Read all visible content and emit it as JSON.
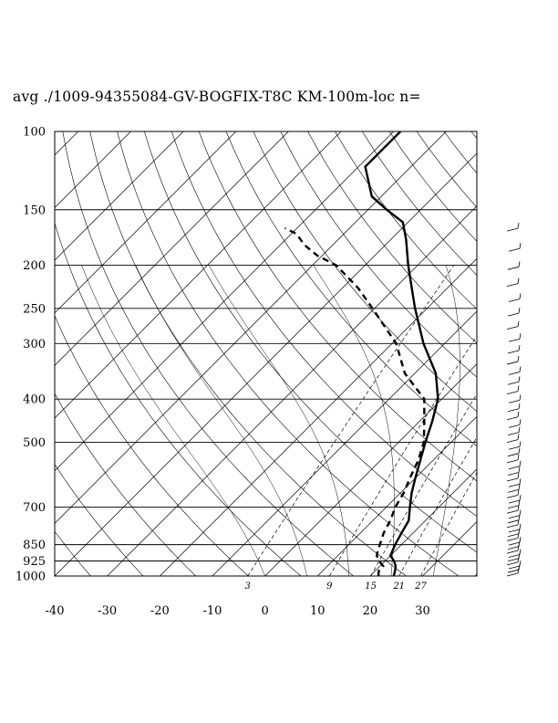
{
  "title": "avg ./1009-94355084-GV-BOGFIX-T8C KM-100m-loc n=",
  "chart_data": {
    "type": "line",
    "subtype": "skew-T log-P diagram",
    "pressure_levels": [
      100,
      150,
      200,
      250,
      300,
      400,
      500,
      700,
      850,
      925,
      1000
    ],
    "temperature_ticks": [
      -40,
      -30,
      -20,
      -10,
      0,
      10,
      20,
      30
    ],
    "mixing_ratio_labels": [
      "3",
      "9",
      "15",
      "21",
      "27"
    ],
    "yscale": "log",
    "ylim": [
      1000,
      100
    ],
    "xlim": [
      -40,
      40
    ],
    "series": [
      {
        "style": "solid",
        "points": [
          [
            1000,
            24.5
          ],
          [
            975,
            23.8
          ],
          [
            950,
            23.0
          ],
          [
            925,
            21.7
          ],
          [
            900,
            20.0
          ],
          [
            875,
            19.4
          ],
          [
            850,
            18.8
          ],
          [
            800,
            17.8
          ],
          [
            750,
            16.8
          ],
          [
            700,
            14.5
          ],
          [
            650,
            12.1
          ],
          [
            600,
            9.9
          ],
          [
            550,
            7.6
          ],
          [
            500,
            5.1
          ],
          [
            450,
            2.5
          ],
          [
            400,
            -0.7
          ],
          [
            350,
            -6.0
          ],
          [
            300,
            -14.0
          ],
          [
            250,
            -22.3
          ],
          [
            225,
            -26.8
          ],
          [
            200,
            -31.8
          ],
          [
            175,
            -37.1
          ],
          [
            160,
            -41.0
          ],
          [
            150,
            -46.4
          ],
          [
            140,
            -51.8
          ],
          [
            120,
            -58.7
          ],
          [
            100,
            -58.7
          ]
        ]
      },
      {
        "style": "dashed",
        "points": [
          [
            1000,
            21.6
          ],
          [
            975,
            20.7
          ],
          [
            950,
            20.6
          ],
          [
            925,
            18.9
          ],
          [
            900,
            17.4
          ],
          [
            875,
            16.6
          ],
          [
            850,
            15.9
          ],
          [
            800,
            14.4
          ],
          [
            750,
            13.3
          ],
          [
            700,
            11.7
          ],
          [
            650,
            10.6
          ],
          [
            600,
            8.9
          ],
          [
            550,
            7.2
          ],
          [
            500,
            4.8
          ],
          [
            450,
            1.0
          ],
          [
            400,
            -3.3
          ],
          [
            350,
            -11.9
          ],
          [
            300,
            -19.2
          ],
          [
            250,
            -30.4
          ],
          [
            225,
            -37.0
          ],
          [
            200,
            -45.5
          ],
          [
            190,
            -51.0
          ],
          [
            180,
            -55.4
          ],
          [
            170,
            -59.0
          ],
          [
            165,
            -62.3
          ]
        ]
      }
    ],
    "wind_barbs": "right margin, 1000-150 hPa",
    "grid": true
  }
}
